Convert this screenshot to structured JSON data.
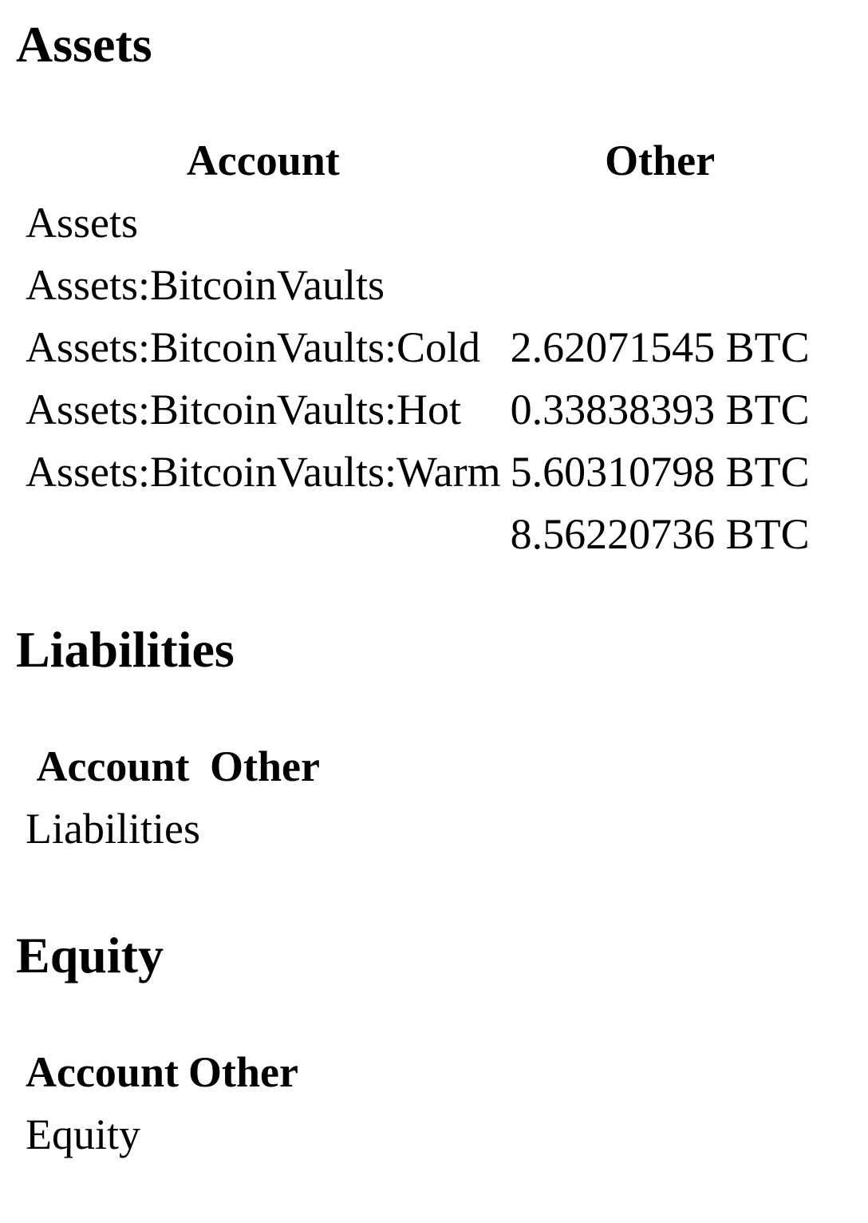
{
  "sections": [
    {
      "title": "Assets",
      "headers": [
        "Account",
        "Other"
      ],
      "rows": [
        {
          "account": "Assets",
          "other": ""
        },
        {
          "account": "Assets:BitcoinVaults",
          "other": ""
        },
        {
          "account": "Assets:BitcoinVaults:Cold",
          "other": "2.62071545 BTC"
        },
        {
          "account": "Assets:BitcoinVaults:Hot",
          "other": "0.33838393 BTC"
        },
        {
          "account": "Assets:BitcoinVaults:Warm",
          "other": "5.60310798 BTC"
        }
      ],
      "total": "8.56220736 BTC"
    },
    {
      "title": "Liabilities",
      "headers": [
        "Account",
        "Other"
      ],
      "rows": [
        {
          "account": "Liabilities",
          "other": ""
        }
      ]
    },
    {
      "title": "Equity",
      "headers": [
        "Account",
        "Other"
      ],
      "rows": [
        {
          "account": "Equity",
          "other": ""
        }
      ]
    }
  ]
}
